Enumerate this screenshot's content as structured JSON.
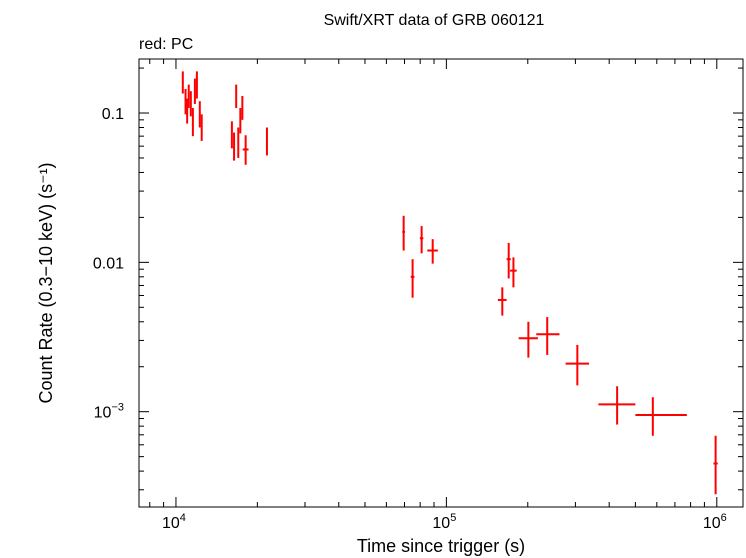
{
  "chart_data": {
    "type": "scatter",
    "title": "Swift/XRT data of GRB 060121",
    "subtitle": "red: PC",
    "xlabel": "Time since trigger (s)",
    "ylabel": "Count Rate (0.3−10 keV) (s⁻¹)",
    "xscale": "log",
    "yscale": "log",
    "xlim": [
      7300,
      1250000
    ],
    "ylim": [
      0.00023,
      0.23
    ],
    "x_ticks": [
      {
        "value": 10000,
        "base": "10",
        "exp": "4"
      },
      {
        "value": 100000,
        "base": "10",
        "exp": "5"
      },
      {
        "value": 1000000,
        "base": "10",
        "exp": "6"
      }
    ],
    "y_ticks": [
      {
        "value": 0.1,
        "label": "0.1",
        "base": "",
        "exp": ""
      },
      {
        "value": 0.01,
        "label": "0.01",
        "base": "",
        "exp": ""
      },
      {
        "value": 0.001,
        "label": "",
        "base": "10",
        "exp": "−3"
      }
    ],
    "series": [
      {
        "name": "PC",
        "color": "#ff0000",
        "points": [
          {
            "x": 10600,
            "xlo": 10520,
            "xhi": 10680,
            "y": 0.16,
            "ylo": 0.135,
            "yhi": 0.19
          },
          {
            "x": 10850,
            "xlo": 10780,
            "xhi": 10920,
            "y": 0.12,
            "ylo": 0.098,
            "yhi": 0.145
          },
          {
            "x": 11000,
            "xlo": 10940,
            "xhi": 11060,
            "y": 0.1,
            "ylo": 0.085,
            "yhi": 0.125
          },
          {
            "x": 11150,
            "xlo": 11080,
            "xhi": 11220,
            "y": 0.13,
            "ylo": 0.108,
            "yhi": 0.155
          },
          {
            "x": 11350,
            "xlo": 11280,
            "xhi": 11420,
            "y": 0.115,
            "ylo": 0.095,
            "yhi": 0.14
          },
          {
            "x": 11550,
            "xlo": 11480,
            "xhi": 11620,
            "y": 0.088,
            "ylo": 0.07,
            "yhi": 0.108
          },
          {
            "x": 11750,
            "xlo": 11680,
            "xhi": 11820,
            "y": 0.14,
            "ylo": 0.115,
            "yhi": 0.17
          },
          {
            "x": 11950,
            "xlo": 11880,
            "xhi": 12020,
            "y": 0.15,
            "ylo": 0.125,
            "yhi": 0.19
          },
          {
            "x": 12250,
            "xlo": 12170,
            "xhi": 12330,
            "y": 0.1,
            "ylo": 0.08,
            "yhi": 0.12
          },
          {
            "x": 12450,
            "xlo": 12380,
            "xhi": 12520,
            "y": 0.08,
            "ylo": 0.065,
            "yhi": 0.098
          },
          {
            "x": 16100,
            "xlo": 16020,
            "xhi": 16180,
            "y": 0.072,
            "ylo": 0.058,
            "yhi": 0.088
          },
          {
            "x": 16400,
            "xlo": 16320,
            "xhi": 16480,
            "y": 0.06,
            "ylo": 0.048,
            "yhi": 0.074
          },
          {
            "x": 16700,
            "xlo": 16610,
            "xhi": 16790,
            "y": 0.13,
            "ylo": 0.108,
            "yhi": 0.155
          },
          {
            "x": 17000,
            "xlo": 16920,
            "xhi": 17080,
            "y": 0.065,
            "ylo": 0.05,
            "yhi": 0.08
          },
          {
            "x": 17300,
            "xlo": 17220,
            "xhi": 17380,
            "y": 0.09,
            "ylo": 0.073,
            "yhi": 0.108
          },
          {
            "x": 17600,
            "xlo": 17500,
            "xhi": 17700,
            "y": 0.11,
            "ylo": 0.09,
            "yhi": 0.13
          },
          {
            "x": 18100,
            "xlo": 17650,
            "xhi": 18550,
            "y": 0.057,
            "ylo": 0.045,
            "yhi": 0.071
          },
          {
            "x": 21700,
            "xlo": 21550,
            "xhi": 21850,
            "y": 0.065,
            "ylo": 0.052,
            "yhi": 0.08
          },
          {
            "x": 69500,
            "xlo": 68700,
            "xhi": 70300,
            "y": 0.016,
            "ylo": 0.012,
            "yhi": 0.0205
          },
          {
            "x": 75000,
            "xlo": 73800,
            "xhi": 76200,
            "y": 0.008,
            "ylo": 0.0058,
            "yhi": 0.0105
          },
          {
            "x": 81000,
            "xlo": 79800,
            "xhi": 82200,
            "y": 0.0145,
            "ylo": 0.0115,
            "yhi": 0.0175
          },
          {
            "x": 89000,
            "xlo": 85000,
            "xhi": 93000,
            "y": 0.012,
            "ylo": 0.0098,
            "yhi": 0.0143
          },
          {
            "x": 161000,
            "xlo": 155000,
            "xhi": 167000,
            "y": 0.0056,
            "ylo": 0.0044,
            "yhi": 0.0068
          },
          {
            "x": 170000,
            "xlo": 167000,
            "xhi": 173000,
            "y": 0.0105,
            "ylo": 0.0078,
            "yhi": 0.0135
          },
          {
            "x": 177000,
            "xlo": 172000,
            "xhi": 182000,
            "y": 0.0088,
            "ylo": 0.0068,
            "yhi": 0.0108
          },
          {
            "x": 201000,
            "xlo": 185000,
            "xhi": 218000,
            "y": 0.0031,
            "ylo": 0.0023,
            "yhi": 0.004
          },
          {
            "x": 236000,
            "xlo": 215000,
            "xhi": 262000,
            "y": 0.0033,
            "ylo": 0.0024,
            "yhi": 0.0043
          },
          {
            "x": 305000,
            "xlo": 276000,
            "xhi": 337000,
            "y": 0.0021,
            "ylo": 0.0015,
            "yhi": 0.0028
          },
          {
            "x": 428000,
            "xlo": 365000,
            "xhi": 500000,
            "y": 0.00112,
            "ylo": 0.00082,
            "yhi": 0.00148
          },
          {
            "x": 580000,
            "xlo": 500000,
            "xhi": 775000,
            "y": 0.00095,
            "ylo": 0.00069,
            "yhi": 0.00125
          },
          {
            "x": 990000,
            "xlo": 972000,
            "xhi": 1008000,
            "y": 0.00045,
            "ylo": 0.00028,
            "yhi": 0.00069
          }
        ]
      }
    ]
  }
}
